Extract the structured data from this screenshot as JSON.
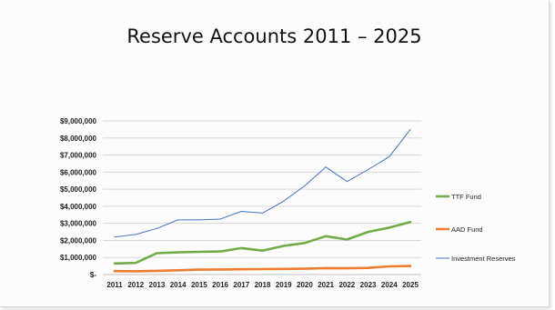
{
  "chart_data": {
    "type": "line",
    "title": "Reserve Accounts 2011 – 2025",
    "x": [
      "2011",
      "2012",
      "2013",
      "2014",
      "2015",
      "2016",
      "2017",
      "2018",
      "2019",
      "2020",
      "2021",
      "2022",
      "2023",
      "2024",
      "2025"
    ],
    "ylim": [
      0,
      9000000
    ],
    "y_ticks": [
      0,
      1000000,
      2000000,
      3000000,
      4000000,
      5000000,
      6000000,
      7000000,
      8000000,
      9000000
    ],
    "y_tick_labels": [
      "$-",
      "$1,000,000",
      "$2,000,000",
      "$3,000,000",
      "$4,000,000",
      "$5,000,000",
      "$6,000,000",
      "$7,000,000",
      "$8,000,000",
      "$9,000,000"
    ],
    "grid": true,
    "legend_position": "right",
    "series": [
      {
        "name": "TTF Fund",
        "color": "#70ad47",
        "values": [
          650000,
          680000,
          1250000,
          1300000,
          1330000,
          1350000,
          1550000,
          1400000,
          1680000,
          1850000,
          2250000,
          2050000,
          2500000,
          2750000,
          3080000
        ]
      },
      {
        "name": "AAD Fund",
        "color": "#ed7d31",
        "values": [
          200000,
          190000,
          220000,
          250000,
          290000,
          300000,
          310000,
          320000,
          330000,
          340000,
          380000,
          370000,
          390000,
          480000,
          500000
        ]
      },
      {
        "name": "Investment Reserves",
        "color": "#4472c4",
        "values": [
          2200000,
          2350000,
          2700000,
          3200000,
          3200000,
          3250000,
          3700000,
          3600000,
          4300000,
          5200000,
          6300000,
          5450000,
          6150000,
          6900000,
          8500000
        ]
      }
    ]
  }
}
